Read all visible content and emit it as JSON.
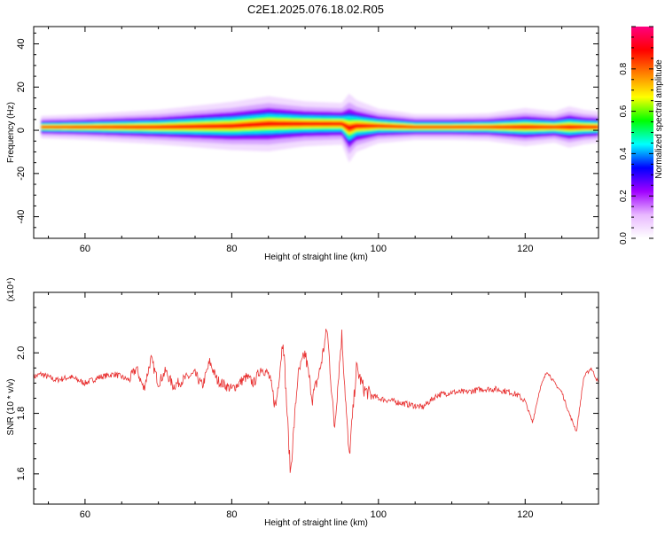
{
  "title": "C2E1.2025.076.18.02.R05",
  "chart_data": [
    {
      "type": "heatmap",
      "xlabel": "Height of straight line (km)",
      "ylabel": "Frequency (Hz)",
      "xlim": [
        53,
        130
      ],
      "ylim": [
        -50,
        48
      ],
      "xticks": [
        60,
        80,
        100,
        120
      ],
      "yticks": [
        40,
        20,
        0,
        -20,
        -40
      ],
      "colorbar": {
        "label": "Normalized spectral amplitude",
        "range": [
          0,
          1
        ],
        "ticks": [
          "0.0",
          "0.2",
          "0.4",
          "0.6",
          "0.8"
        ],
        "colors": [
          "#ffffff",
          "#e8b8ff",
          "#a000ff",
          "#0000ff",
          "#00ffff",
          "#00ff00",
          "#ffff00",
          "#ff8000",
          "#ff0000",
          "#ff0080"
        ]
      },
      "ridge": {
        "x": [
          54,
          60,
          70,
          80,
          85,
          90,
          95,
          96,
          97,
          100,
          105,
          110,
          115,
          120,
          124,
          126,
          128,
          130
        ],
        "center_hz": [
          1.5,
          1.5,
          1.5,
          2,
          3,
          3,
          3,
          1,
          2,
          2,
          1.5,
          1.5,
          1.5,
          1.5,
          1.5,
          1.5,
          1.5,
          1.5
        ],
        "halfwidth_hz": [
          1.3,
          1.5,
          2,
          2.8,
          3.2,
          2.6,
          2.4,
          4,
          3,
          2,
          1.5,
          1.5,
          1.6,
          2.2,
          1.8,
          2.4,
          2,
          1.8
        ]
      }
    },
    {
      "type": "line",
      "xlabel": "Height of straight line (km)",
      "ylabel": "SNR (10 * v/v)",
      "multiplier": "(x10⁴)",
      "xlim": [
        53,
        130
      ],
      "ylim": [
        1.5,
        2.2
      ],
      "xticks": [
        60,
        80,
        100,
        120
      ],
      "yticks": [
        "2.0",
        "1.8",
        "1.6"
      ],
      "color": "#e83030",
      "series": [
        {
          "x": [
            53,
            54,
            56,
            58,
            60,
            62,
            64,
            66,
            67,
            68,
            69,
            70,
            71,
            72,
            74,
            75,
            76,
            77,
            78,
            80,
            82,
            83,
            84,
            85,
            86,
            87,
            88,
            89,
            90,
            91,
            92,
            93,
            94,
            95,
            96,
            97,
            98,
            99,
            100,
            102,
            104,
            106,
            108,
            110,
            112,
            114,
            116,
            118,
            119,
            120,
            121,
            122,
            123,
            124,
            125,
            126,
            127,
            128,
            129,
            130
          ],
          "y": [
            1.92,
            1.93,
            1.91,
            1.92,
            1.9,
            1.92,
            1.93,
            1.91,
            1.95,
            1.88,
            1.98,
            1.9,
            1.94,
            1.89,
            1.92,
            1.93,
            1.89,
            1.97,
            1.91,
            1.88,
            1.92,
            1.9,
            1.95,
            1.93,
            1.82,
            2.05,
            1.6,
            1.92,
            2.0,
            1.85,
            1.94,
            2.08,
            1.75,
            2.06,
            1.65,
            1.95,
            1.88,
            1.86,
            1.85,
            1.84,
            1.83,
            1.82,
            1.86,
            1.87,
            1.87,
            1.88,
            1.88,
            1.87,
            1.86,
            1.84,
            1.77,
            1.88,
            1.94,
            1.9,
            1.87,
            1.8,
            1.74,
            1.92,
            1.95,
            1.9
          ]
        }
      ]
    }
  ]
}
